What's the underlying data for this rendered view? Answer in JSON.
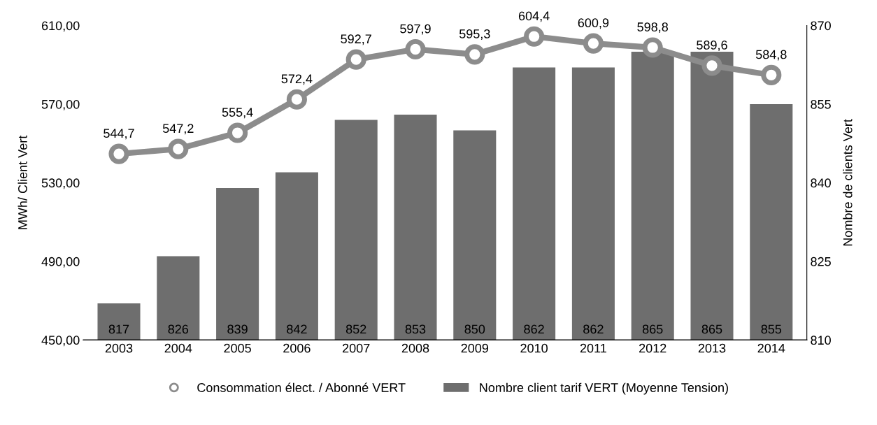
{
  "chart_data": {
    "type": "bar",
    "categories": [
      "2003",
      "2004",
      "2005",
      "2006",
      "2007",
      "2008",
      "2009",
      "2010",
      "2011",
      "2012",
      "2013",
      "2014"
    ],
    "ylabel": "MWh/ Client Vert",
    "y2label": "Nombre de clients Vert",
    "ylim": [
      450,
      610
    ],
    "yticks": [
      {
        "value": 450,
        "label": "450,00"
      },
      {
        "value": 490,
        "label": "490,00"
      },
      {
        "value": 530,
        "label": "530,00"
      },
      {
        "value": 570,
        "label": "570,00"
      },
      {
        "value": 610,
        "label": "610,00"
      }
    ],
    "y2lim": [
      810,
      870
    ],
    "y2ticks": [
      810,
      825,
      840,
      855,
      870
    ],
    "series": [
      {
        "name": "Consommation élect. / Abonné VERT",
        "type": "line",
        "color": "#8c8c8c",
        "marker": "circle",
        "values": [
          544.7,
          547.2,
          555.4,
          572.4,
          592.7,
          597.9,
          595.3,
          604.4,
          600.9,
          598.8,
          589.6,
          584.8
        ],
        "value_labels": [
          "544,7",
          "547,2",
          "555,4",
          "572,4",
          "592,7",
          "597,9",
          "595,3",
          "604,4",
          "600,9",
          "598,8",
          "589,6",
          "584,8"
        ]
      },
      {
        "name": "Nombre client tarif VERT (Moyenne Tension)",
        "axis": "y2",
        "color": "#6e6e6e",
        "values": [
          817,
          826,
          839,
          842,
          852,
          853,
          850,
          862,
          862,
          865,
          865,
          855
        ],
        "value_labels": [
          "817",
          "826",
          "839",
          "842",
          "852",
          "853",
          "850",
          "862",
          "862",
          "865",
          "865",
          "855"
        ]
      }
    ],
    "legend": "bottom",
    "grid": false
  }
}
